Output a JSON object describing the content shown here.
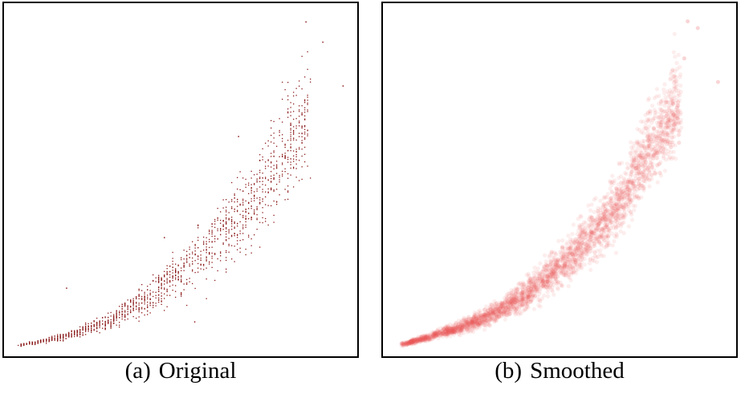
{
  "chart_data": [
    {
      "type": "scatter",
      "title": "",
      "caption_tag": "(a)",
      "caption_text": "Original",
      "xlabel": "",
      "ylabel": "",
      "xlim": [
        0,
        1
      ],
      "ylim": [
        0,
        1
      ],
      "grid": false,
      "axis_ticks": false,
      "point_color": "#8b1a1a",
      "series": [
        {
          "trend": {
            "x": [
              0.02,
              0.1,
              0.2,
              0.3,
              0.4,
              0.5,
              0.6,
              0.7,
              0.78,
              0.85,
              0.88
            ],
            "y_center": [
              0.01,
              0.025,
              0.05,
              0.09,
              0.15,
              0.23,
              0.31,
              0.42,
              0.55,
              0.65,
              0.72
            ],
            "y_spread": [
              0.003,
              0.006,
              0.012,
              0.02,
              0.04,
              0.06,
              0.08,
              0.1,
              0.13,
              0.15,
              0.16
            ]
          },
          "outliers": [
            {
              "x": 0.87,
              "y": 0.97
            },
            {
              "x": 0.92,
              "y": 0.91
            },
            {
              "x": 0.98,
              "y": 0.78
            },
            {
              "x": 0.16,
              "y": 0.18
            },
            {
              "x": 0.54,
              "y": 0.08
            },
            {
              "x": 0.45,
              "y": 0.33
            },
            {
              "x": 0.67,
              "y": 0.63
            }
          ]
        }
      ]
    },
    {
      "type": "scatter",
      "title": "",
      "caption_tag": "(b)",
      "caption_text": "Smoothed",
      "xlabel": "",
      "ylabel": "",
      "xlim": [
        0,
        1
      ],
      "ylim": [
        0,
        1
      ],
      "grid": false,
      "axis_ticks": false,
      "point_color": "#e8575c",
      "series": [
        {
          "trend": {
            "x": [
              0.03,
              0.1,
              0.2,
              0.3,
              0.4,
              0.5,
              0.6,
              0.7,
              0.76,
              0.82,
              0.86
            ],
            "y_center": [
              0.01,
              0.03,
              0.06,
              0.1,
              0.16,
              0.24,
              0.34,
              0.46,
              0.58,
              0.68,
              0.74
            ],
            "y_spread": [
              0.004,
              0.008,
              0.015,
              0.025,
              0.035,
              0.05,
              0.07,
              0.08,
              0.1,
              0.12,
              0.13
            ]
          },
          "outliers": [
            {
              "x": 0.88,
              "y": 0.97
            },
            {
              "x": 0.91,
              "y": 0.95
            },
            {
              "x": 0.97,
              "y": 0.79
            },
            {
              "x": 0.87,
              "y": 0.86
            }
          ]
        }
      ]
    }
  ]
}
